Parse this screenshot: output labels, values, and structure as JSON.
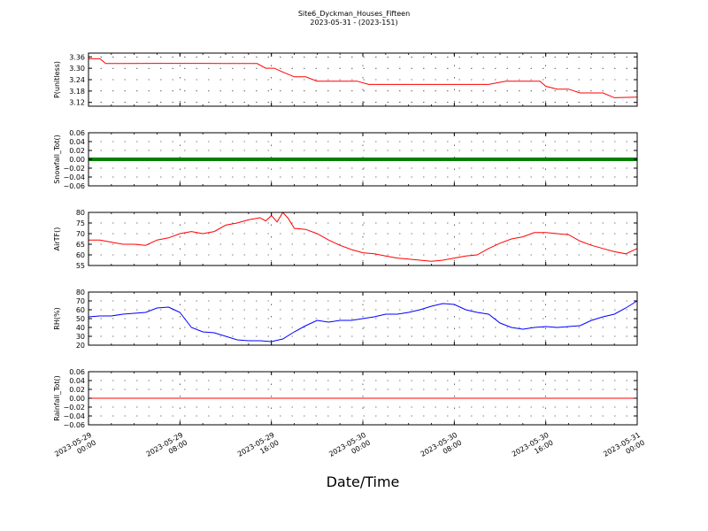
{
  "title": {
    "line1": "Site6_Dyckman_Houses_Fifteen",
    "line2": "2023-05-31 - (2023-151)"
  },
  "chart_data": {
    "xlabel": "Date/Time",
    "x_ticks": [
      {
        "l1": "2023-05-29",
        "l2": "00:00"
      },
      {
        "l1": "2023-05-29",
        "l2": "08:00"
      },
      {
        "l1": "2023-05-29",
        "l2": "16:00"
      },
      {
        "l1": "2023-05-30",
        "l2": "00:00"
      },
      {
        "l1": "2023-05-30",
        "l2": "08:00"
      },
      {
        "l1": "2023-05-30",
        "l2": "16:00"
      },
      {
        "l1": "2023-05-31",
        "l2": "00:00"
      }
    ],
    "xlim": [
      "2023-05-29 00:00",
      "2023-05-31 00:00"
    ],
    "grid": true,
    "panels": [
      {
        "type": "line",
        "ylabel": "P(unitless)",
        "color": "#ff0000",
        "ylim": [
          3.1,
          3.38
        ],
        "yticks": [
          "3.36",
          "3.30",
          "3.24",
          "3.18",
          "3.12"
        ],
        "ytick_values": [
          3.36,
          3.3,
          3.24,
          3.18,
          3.12
        ],
        "x": [
          "2023-05-29 00:00",
          "2023-05-29 01:00",
          "2023-05-29 01:30",
          "2023-05-29 03:00",
          "2023-05-29 06:00",
          "2023-05-29 10:00",
          "2023-05-29 12:30",
          "2023-05-29 13:45",
          "2023-05-29 14:45",
          "2023-05-29 15:30",
          "2023-05-29 16:15",
          "2023-05-29 17:00",
          "2023-05-29 18:00",
          "2023-05-29 19:00",
          "2023-05-29 20:00",
          "2023-05-29 22:00",
          "2023-05-29 23:30",
          "2023-05-30 00:30",
          "2023-05-30 03:00",
          "2023-05-30 06:00",
          "2023-05-30 08:00",
          "2023-05-30 11:00",
          "2023-05-30 12:30",
          "2023-05-30 14:30",
          "2023-05-30 15:30",
          "2023-05-30 16:00",
          "2023-05-30 17:00",
          "2023-05-30 18:00",
          "2023-05-30 19:00",
          "2023-05-30 20:00",
          "2023-05-30 21:00",
          "2023-05-30 22:00",
          "2023-05-31 00:00"
        ],
        "values": [
          3.35,
          3.35,
          3.325,
          3.325,
          3.326,
          3.326,
          3.325,
          3.325,
          3.325,
          3.3,
          3.3,
          3.28,
          3.255,
          3.255,
          3.232,
          3.232,
          3.232,
          3.215,
          3.215,
          3.215,
          3.215,
          3.215,
          3.232,
          3.232,
          3.232,
          3.205,
          3.19,
          3.19,
          3.17,
          3.17,
          3.17,
          3.145,
          3.148
        ]
      },
      {
        "type": "line",
        "ylabel": "Snowfall_Tot()",
        "color": "#008000",
        "line_width": 4,
        "ylim": [
          -0.06,
          0.06
        ],
        "yticks": [
          "0.06",
          "0.04",
          "0.02",
          "0.00",
          "−0.02",
          "−0.04",
          "−0.06"
        ],
        "ytick_values": [
          0.06,
          0.04,
          0.02,
          0.0,
          -0.02,
          -0.04,
          -0.06
        ],
        "x": [
          "2023-05-29 00:00",
          "2023-05-31 00:00"
        ],
        "values": [
          0,
          0
        ]
      },
      {
        "type": "line",
        "ylabel": "AirTF()",
        "color": "#ff0000",
        "ylim": [
          55,
          80
        ],
        "yticks": [
          "80",
          "75",
          "70",
          "65",
          "60",
          "55"
        ],
        "ytick_values": [
          80,
          75,
          70,
          65,
          60,
          55
        ],
        "x": [
          "2023-05-29 00:00",
          "2023-05-29 01:00",
          "2023-05-29 02:00",
          "2023-05-29 03:00",
          "2023-05-29 04:00",
          "2023-05-29 05:00",
          "2023-05-29 06:00",
          "2023-05-29 07:00",
          "2023-05-29 08:00",
          "2023-05-29 09:00",
          "2023-05-29 10:00",
          "2023-05-29 11:00",
          "2023-05-29 12:00",
          "2023-05-29 13:00",
          "2023-05-29 14:00",
          "2023-05-29 15:00",
          "2023-05-29 15:30",
          "2023-05-29 16:00",
          "2023-05-29 16:30",
          "2023-05-29 17:00",
          "2023-05-29 17:30",
          "2023-05-29 18:00",
          "2023-05-29 19:00",
          "2023-05-29 20:00",
          "2023-05-29 21:00",
          "2023-05-29 22:00",
          "2023-05-29 23:00",
          "2023-05-30 00:00",
          "2023-05-30 01:00",
          "2023-05-30 02:00",
          "2023-05-30 03:00",
          "2023-05-30 04:00",
          "2023-05-30 05:00",
          "2023-05-30 06:00",
          "2023-05-30 07:00",
          "2023-05-30 08:00",
          "2023-05-30 09:00",
          "2023-05-30 10:00",
          "2023-05-30 11:00",
          "2023-05-30 12:00",
          "2023-05-30 13:00",
          "2023-05-30 14:00",
          "2023-05-30 15:00",
          "2023-05-30 16:00",
          "2023-05-30 17:00",
          "2023-05-30 18:00",
          "2023-05-30 19:00",
          "2023-05-30 20:00",
          "2023-05-30 21:00",
          "2023-05-30 22:00",
          "2023-05-30 23:00",
          "2023-05-31 00:00"
        ],
        "values": [
          67,
          67,
          66,
          65,
          65,
          64.5,
          67,
          68,
          70,
          71,
          70,
          71,
          74,
          75,
          76.5,
          77.5,
          76,
          78.5,
          75.5,
          80,
          77,
          72.5,
          72,
          70,
          67,
          64.5,
          62.5,
          61,
          60.5,
          59.5,
          58.5,
          58,
          57.5,
          57,
          57.5,
          58.5,
          59.5,
          60,
          63,
          65.5,
          67.5,
          68.5,
          70.5,
          70.5,
          70,
          69.5,
          66.5,
          64.5,
          63,
          61.5,
          60.5,
          63
        ]
      },
      {
        "type": "line",
        "ylabel": "RH(%)",
        "color": "#0000ff",
        "ylim": [
          20,
          80
        ],
        "yticks": [
          "80",
          "70",
          "60",
          "50",
          "40",
          "30",
          "20"
        ],
        "ytick_values": [
          80,
          70,
          60,
          50,
          40,
          30,
          20
        ],
        "x": [
          "2023-05-29 00:00",
          "2023-05-29 01:00",
          "2023-05-29 02:00",
          "2023-05-29 03:00",
          "2023-05-29 04:00",
          "2023-05-29 05:00",
          "2023-05-29 06:00",
          "2023-05-29 07:00",
          "2023-05-29 07:30",
          "2023-05-29 08:00",
          "2023-05-29 09:00",
          "2023-05-29 10:00",
          "2023-05-29 11:00",
          "2023-05-29 12:00",
          "2023-05-29 13:00",
          "2023-05-29 14:00",
          "2023-05-29 15:00",
          "2023-05-29 16:00",
          "2023-05-29 17:00",
          "2023-05-29 18:00",
          "2023-05-29 19:00",
          "2023-05-29 20:00",
          "2023-05-29 21:00",
          "2023-05-29 22:00",
          "2023-05-29 23:00",
          "2023-05-30 00:00",
          "2023-05-30 01:00",
          "2023-05-30 02:00",
          "2023-05-30 03:00",
          "2023-05-30 04:00",
          "2023-05-30 05:00",
          "2023-05-30 06:00",
          "2023-05-30 07:00",
          "2023-05-30 08:00",
          "2023-05-30 09:00",
          "2023-05-30 10:00",
          "2023-05-30 11:00",
          "2023-05-30 12:00",
          "2023-05-30 13:00",
          "2023-05-30 14:00",
          "2023-05-30 15:00",
          "2023-05-30 16:00",
          "2023-05-30 17:00",
          "2023-05-30 18:00",
          "2023-05-30 19:00",
          "2023-05-30 20:00",
          "2023-05-30 21:00",
          "2023-05-30 22:00",
          "2023-05-30 23:00",
          "2023-05-31 00:00"
        ],
        "values": [
          52,
          53,
          53,
          55,
          56,
          57,
          62,
          63,
          60,
          57,
          40,
          35,
          34,
          30,
          26,
          25,
          25,
          24,
          27,
          35,
          42,
          48,
          46,
          48,
          48,
          50,
          52,
          55,
          55,
          57,
          60,
          64,
          67,
          66,
          60,
          57,
          55,
          45,
          40,
          38,
          40,
          41,
          40,
          41,
          42,
          48,
          52,
          55,
          62,
          70
        ]
      },
      {
        "type": "line",
        "ylabel": "Rainfall_Tot()",
        "color": "#ff0000",
        "ylim": [
          -0.06,
          0.06
        ],
        "yticks": [
          "0.06",
          "0.04",
          "0.02",
          "0.00",
          "−0.02",
          "−0.04",
          "−0.06"
        ],
        "ytick_values": [
          0.06,
          0.04,
          0.02,
          0.0,
          -0.02,
          -0.04,
          -0.06
        ],
        "x": [
          "2023-05-29 00:00",
          "2023-05-31 00:00"
        ],
        "values": [
          0,
          0
        ]
      }
    ]
  }
}
